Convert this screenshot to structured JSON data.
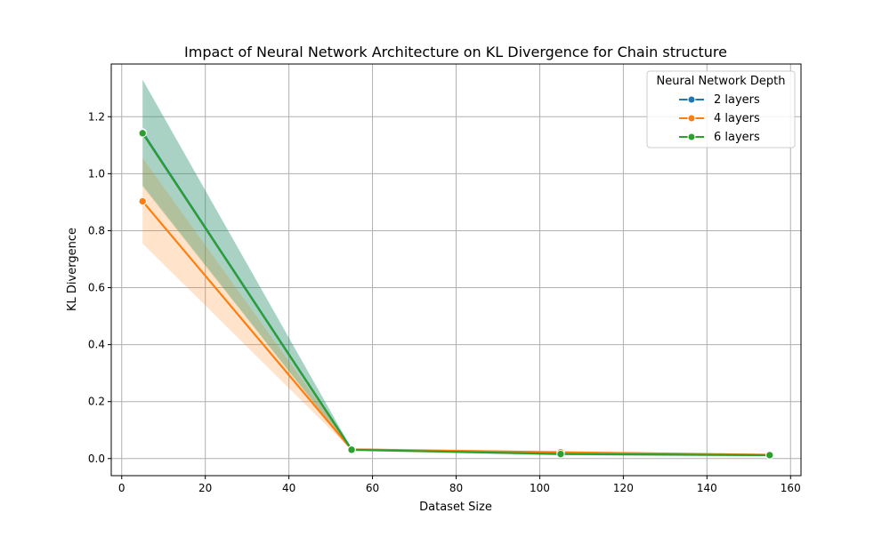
{
  "chart_data": {
    "type": "line",
    "title": "Impact of Neural Network Architecture on KL Divergence for Chain structure",
    "xlabel": "Dataset Size",
    "ylabel": "KL Divergence",
    "xlim": [
      -2.5,
      162.5
    ],
    "ylim": [
      -0.06,
      1.385
    ],
    "xticks": [
      0,
      20,
      40,
      60,
      80,
      100,
      120,
      140,
      160
    ],
    "yticks": [
      0.0,
      0.2,
      0.4,
      0.6,
      0.8,
      1.0,
      1.2
    ],
    "xtick_labels": [
      "0",
      "20",
      "40",
      "60",
      "80",
      "100",
      "120",
      "140",
      "160"
    ],
    "ytick_labels": [
      "0.0",
      "0.2",
      "0.4",
      "0.6",
      "0.8",
      "1.0",
      "1.2"
    ],
    "grid": true,
    "legend": {
      "title": "Neural Network Depth",
      "placement": "top-right"
    },
    "series": [
      {
        "name": "2 layers",
        "color": "#1f77b4",
        "x": [
          5,
          55,
          105,
          155
        ],
        "y": [
          1.145,
          0.032,
          0.019,
          0.012
        ],
        "ci_lower": [
          0.96,
          0.028,
          0.012,
          0.008
        ],
        "ci_upper": [
          1.33,
          0.036,
          0.025,
          0.016
        ]
      },
      {
        "name": "4 layers",
        "color": "#ff7f0e",
        "x": [
          5,
          55,
          105,
          155
        ],
        "y": [
          0.903,
          0.032,
          0.022,
          0.013
        ],
        "ci_lower": [
          0.755,
          0.029,
          0.017,
          0.009
        ],
        "ci_upper": [
          1.055,
          0.036,
          0.027,
          0.017
        ]
      },
      {
        "name": "6 layers",
        "color": "#2ca02c",
        "x": [
          5,
          55,
          105,
          155
        ],
        "y": [
          1.142,
          0.031,
          0.016,
          0.012
        ],
        "ci_lower": [
          0.955,
          0.027,
          0.011,
          0.008
        ],
        "ci_upper": [
          1.33,
          0.035,
          0.022,
          0.016
        ]
      }
    ]
  }
}
